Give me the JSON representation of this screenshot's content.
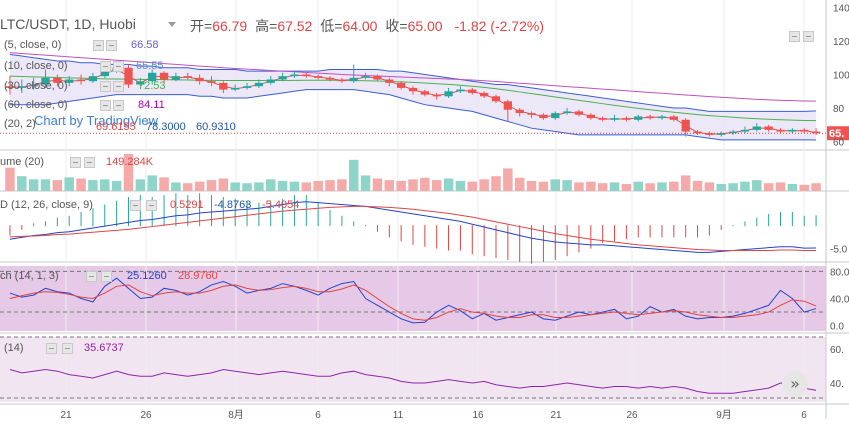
{
  "header": {
    "symbol": "LTC/USDT, 1D, Huobi",
    "open_label": "开=",
    "open": "66.79",
    "high_label": "高=",
    "high": "67.52",
    "low_label": "低=",
    "low": "64.00",
    "close_label": "收=",
    "close": "65.00",
    "change": "-1.82 (-2.72%)"
  },
  "legends": {
    "ma5": {
      "label": "(5, close, 0)",
      "value": "66.58",
      "color": "#6a5acd"
    },
    "ma10": {
      "label": "(10, close, 0)",
      "value": "65.55",
      "color": "#5b8cc8"
    },
    "ma30": {
      "label": "(30, close, 0)",
      "value": "72.53",
      "color": "#4caf50"
    },
    "ma60": {
      "label": "(60, close, 0)",
      "value": "84.11",
      "color": "#b000b0"
    },
    "bb": {
      "label": "(20, 2)",
      "v1": "69.6155",
      "v2": "78.3000",
      "v3": "60.9310"
    },
    "watermark": "Chart by TradingView",
    "volume": {
      "label": "ume (20)",
      "value": "149.284K"
    },
    "macd": {
      "label": "D (12, 26, close, 9)",
      "v1": "0.5291",
      "v2": "-4.8763",
      "v3": "-5.4054"
    },
    "stoch": {
      "label": "ch (14, 1, 3)",
      "v1": "25.1260",
      "v2": "28.9760"
    },
    "rsi": {
      "label": "(14)",
      "value": "35.6737"
    }
  },
  "price_axis": [
    "140",
    "120",
    "100",
    "80",
    "60"
  ],
  "price_tag": "65.",
  "macd_axis": [
    "-5.0"
  ],
  "stoch_axis": [
    "80.0",
    "40.0",
    "0.0"
  ],
  "rsi_axis": [
    "60.",
    "40."
  ],
  "x_labels": [
    "21",
    "26",
    "8月",
    "6",
    "11",
    "16",
    "21",
    "26",
    "9月",
    "6"
  ],
  "colors": {
    "up": "#26a69a",
    "down": "#ef5350",
    "bb_fill": "#e9e4f7"
  },
  "chart_data": {
    "type": "candlestick",
    "candles": [
      [
        93,
        92,
        99,
        88
      ],
      [
        92,
        93,
        97,
        89
      ],
      [
        93,
        94,
        98,
        91
      ],
      [
        94,
        98,
        103,
        92
      ],
      [
        98,
        95,
        100,
        93
      ],
      [
        95,
        97,
        99,
        93
      ],
      [
        97,
        96,
        100,
        94
      ],
      [
        96,
        99,
        101,
        95
      ],
      [
        99,
        102,
        104,
        98
      ],
      [
        102,
        104,
        106,
        101
      ],
      [
        104,
        94,
        106,
        92
      ],
      [
        94,
        96,
        98,
        93
      ],
      [
        96,
        101,
        103,
        94
      ],
      [
        101,
        97,
        102,
        95
      ],
      [
        97,
        99,
        101,
        96
      ],
      [
        99,
        98,
        101,
        97
      ],
      [
        98,
        96,
        100,
        94
      ],
      [
        96,
        95,
        99,
        93
      ],
      [
        95,
        91,
        96,
        89
      ],
      [
        91,
        92,
        94,
        90
      ],
      [
        92,
        93,
        95,
        91
      ],
      [
        93,
        95,
        97,
        92
      ],
      [
        95,
        97,
        99,
        94
      ],
      [
        97,
        99,
        101,
        96
      ],
      [
        99,
        100,
        102,
        98
      ],
      [
        100,
        99,
        101,
        98
      ],
      [
        99,
        98,
        100,
        97
      ],
      [
        98,
        97,
        99,
        96
      ],
      [
        97,
        96,
        98,
        95
      ],
      [
        96,
        98,
        106,
        95
      ],
      [
        98,
        99,
        101,
        97
      ],
      [
        99,
        97,
        100,
        96
      ],
      [
        97,
        95,
        98,
        93
      ],
      [
        95,
        92,
        96,
        91
      ],
      [
        92,
        90,
        93,
        88
      ],
      [
        90,
        88,
        91,
        87
      ],
      [
        88,
        87,
        89,
        85
      ],
      [
        87,
        90,
        92,
        86
      ],
      [
        90,
        91,
        93,
        89
      ],
      [
        91,
        89,
        92,
        88
      ],
      [
        89,
        87,
        90,
        86
      ],
      [
        87,
        84,
        88,
        83
      ],
      [
        84,
        79,
        85,
        72
      ],
      [
        79,
        77,
        80,
        75
      ],
      [
        77,
        76,
        78,
        74
      ],
      [
        76,
        74,
        77,
        73
      ],
      [
        74,
        77,
        78,
        73
      ],
      [
        77,
        78,
        80,
        76
      ],
      [
        78,
        76,
        79,
        75
      ],
      [
        76,
        74,
        77,
        73
      ],
      [
        74,
        73,
        75,
        72
      ],
      [
        73,
        74,
        76,
        72
      ],
      [
        74,
        73,
        75,
        72
      ],
      [
        73,
        75,
        76,
        72
      ],
      [
        75,
        74,
        76,
        73
      ],
      [
        74,
        75,
        76,
        73
      ],
      [
        75,
        73,
        76,
        72
      ],
      [
        73,
        66,
        74,
        63
      ],
      [
        66,
        65,
        67,
        64
      ],
      [
        65,
        64,
        66,
        63
      ],
      [
        64,
        65,
        66,
        63
      ],
      [
        65,
        66,
        67,
        64
      ],
      [
        66,
        67,
        69,
        65
      ],
      [
        67,
        69,
        71,
        66
      ],
      [
        69,
        67,
        70,
        66
      ],
      [
        67,
        66,
        68,
        65
      ],
      [
        66,
        67,
        68,
        65
      ],
      [
        67,
        66,
        68,
        65
      ],
      [
        66,
        65,
        68,
        64
      ]
    ],
    "volume": [
      60,
      38,
      30,
      30,
      28,
      35,
      32,
      28,
      30,
      26,
      95,
      30,
      40,
      35,
      22,
      20,
      24,
      28,
      32,
      22,
      20,
      22,
      30,
      26,
      24,
      22,
      26,
      28,
      30,
      80,
      40,
      32,
      28,
      26,
      30,
      34,
      28,
      32,
      26,
      24,
      30,
      38,
      58,
      34,
      26,
      24,
      30,
      28,
      22,
      24,
      20,
      22,
      18,
      24,
      20,
      22,
      24,
      40,
      26,
      22,
      18,
      20,
      24,
      28,
      20,
      22,
      18,
      16,
      20
    ],
    "ma60": [
      113,
      112.5,
      112,
      111.5,
      111,
      110.5,
      110,
      109.5,
      109,
      108.5,
      108,
      107.5,
      107,
      106.5,
      106,
      105.5,
      105,
      104.5,
      104,
      103.6,
      103.2,
      102.8,
      102.4,
      102,
      101.6,
      101.2,
      100.8,
      100.4,
      100,
      99.7,
      99.4,
      99.1,
      98.8,
      98.5,
      98.2,
      97.9,
      97.6,
      97.3,
      97,
      96.7,
      96.3,
      95.8,
      95.3,
      94.8,
      94.3,
      93.8,
      93.3,
      92.8,
      92.3,
      91.8,
      91.3,
      90.8,
      90.3,
      89.8,
      89.3,
      88.8,
      88.3,
      87.8,
      87.3,
      86.8,
      86.4,
      86,
      85.6,
      85.2,
      84.9,
      84.6,
      84.4,
      84.2,
      84.11
    ],
    "ma30": [
      99,
      98.8,
      98.6,
      98.4,
      98.2,
      98,
      97.8,
      97.6,
      97.4,
      97.3,
      97.2,
      97.1,
      97,
      96.9,
      96.8,
      96.7,
      96.6,
      96.5,
      96.4,
      96.4,
      96.4,
      96.4,
      96.4,
      96.4,
      96.5,
      96.6,
      96.6,
      96.6,
      96.5,
      96.4,
      96.3,
      96.1,
      95.9,
      95.6,
      95.3,
      94.9,
      94.5,
      94.1,
      93.6,
      93,
      92.3,
      91.5,
      90.6,
      89.6,
      88.6,
      87.6,
      86.6,
      85.6,
      84.6,
      83.6,
      82.6,
      81.6,
      80.7,
      79.8,
      79,
      78.2,
      77.5,
      76.8,
      76.1,
      75.5,
      75,
      74.5,
      74,
      73.6,
      73.3,
      73,
      72.8,
      72.6,
      72.53
    ],
    "bb_upper": [
      112,
      111,
      110,
      109,
      108,
      108,
      107,
      107,
      106,
      106,
      106,
      105,
      105,
      104,
      104,
      104,
      103,
      103,
      103,
      103,
      102,
      102,
      102,
      102,
      102,
      102,
      102,
      103,
      103,
      103,
      103,
      103,
      102,
      102,
      101,
      100,
      99,
      98,
      97,
      96,
      95,
      94,
      94,
      93,
      92,
      91,
      90,
      89,
      88,
      87,
      86,
      85,
      84,
      83,
      82,
      81,
      80,
      80,
      79,
      78,
      78,
      78,
      78,
      78,
      78,
      78,
      78,
      78,
      78.3
    ],
    "bb_lower": [
      82,
      82,
      82,
      82,
      83,
      84,
      85,
      86,
      87,
      88,
      88,
      88,
      88,
      88,
      88,
      88,
      87,
      87,
      86,
      86,
      86,
      87,
      88,
      89,
      90,
      91,
      91,
      91,
      91,
      91,
      90,
      89,
      88,
      86,
      84,
      82,
      81,
      80,
      79,
      78,
      76,
      74,
      72,
      70,
      68,
      67,
      66,
      65,
      64,
      64,
      64,
      64,
      64,
      64,
      64,
      64,
      64,
      64,
      63,
      62,
      61,
      61,
      61,
      61,
      61,
      61,
      61,
      61,
      60.931
    ],
    "stoch_k": [
      48,
      42,
      45,
      55,
      50,
      48,
      40,
      35,
      58,
      70,
      55,
      40,
      42,
      55,
      52,
      45,
      50,
      60,
      65,
      58,
      48,
      52,
      55,
      62,
      58,
      52,
      45,
      55,
      62,
      65,
      40,
      30,
      20,
      10,
      4,
      5,
      20,
      30,
      22,
      10,
      18,
      8,
      12,
      16,
      20,
      10,
      8,
      14,
      20,
      16,
      20,
      24,
      10,
      14,
      28,
      20,
      24,
      14,
      10,
      12,
      12,
      14,
      18,
      24,
      30,
      52,
      40,
      20,
      25.126
    ],
    "stoch_d": [
      40,
      44,
      48,
      50,
      49,
      46,
      42,
      40,
      48,
      58,
      60,
      50,
      44,
      48,
      50,
      48,
      48,
      52,
      58,
      60,
      55,
      52,
      53,
      56,
      58,
      55,
      50,
      50,
      54,
      60,
      52,
      40,
      28,
      18,
      10,
      8,
      12,
      20,
      25,
      20,
      18,
      14,
      12,
      12,
      16,
      16,
      12,
      12,
      14,
      16,
      18,
      20,
      18,
      16,
      18,
      20,
      22,
      20,
      16,
      14,
      12,
      12,
      14,
      16,
      20,
      30,
      38,
      36,
      28.976
    ],
    "macd": [
      -3,
      -2.6,
      -2.2,
      -2,
      -1.6,
      -1.4,
      -1,
      -0.6,
      -0.2,
      0.2,
      0.6,
      1,
      1.2,
      1.6,
      2,
      2.2,
      2.6,
      2.8,
      3,
      3.2,
      3.4,
      3.6,
      4,
      4.4,
      4.8,
      5,
      4.8,
      4.6,
      4.4,
      4.2,
      4,
      3.6,
      3.2,
      2.8,
      2.4,
      2,
      1.6,
      1.2,
      0.8,
      0.2,
      -0.4,
      -1,
      -1.6,
      -2.2,
      -2.8,
      -3.2,
      -3.6,
      -3.8,
      -4,
      -4.2,
      -4.2,
      -4.4,
      -4.6,
      -4.8,
      -5,
      -5.2,
      -5.4,
      -5.6,
      -5.8,
      -5.8,
      -5.6,
      -5.4,
      -5.2,
      -5,
      -4.8,
      -4.6,
      -4.6,
      -4.9,
      -4.8763
    ],
    "macd_signal": [
      -2.5,
      -2.4,
      -2.3,
      -2.2,
      -2,
      -1.9,
      -1.7,
      -1.5,
      -1.3,
      -1.1,
      -0.9,
      -0.6,
      -0.3,
      0,
      0.3,
      0.6,
      0.9,
      1.2,
      1.5,
      1.8,
      2.1,
      2.4,
      2.7,
      3,
      3.2,
      3.4,
      3.6,
      3.8,
      3.9,
      4,
      4,
      3.9,
      3.8,
      3.6,
      3.4,
      3.1,
      2.8,
      2.5,
      2.1,
      1.7,
      1.2,
      0.7,
      0.2,
      -0.3,
      -0.8,
      -1.3,
      -1.8,
      -2.2,
      -2.6,
      -3,
      -3.3,
      -3.6,
      -3.9,
      -4.2,
      -4.4,
      -4.6,
      -4.8,
      -5,
      -5.2,
      -5.3,
      -5.4,
      -5.4,
      -5.4,
      -5.4,
      -5.4,
      -5.3,
      -5.3,
      -5.4,
      -5.4054
    ],
    "rsi": [
      48,
      46,
      47,
      48,
      47,
      45,
      44,
      43,
      45,
      47,
      45,
      44,
      44,
      46,
      45,
      44,
      45,
      46,
      48,
      47,
      46,
      45,
      46,
      47,
      46,
      45,
      44,
      44,
      46,
      47,
      45,
      44,
      43,
      41,
      40,
      40,
      41,
      42,
      41,
      40,
      41,
      39,
      38,
      37,
      38,
      38,
      39,
      40,
      39,
      38,
      37,
      38,
      38,
      37,
      38,
      37,
      38,
      37,
      35,
      34,
      34,
      34,
      35,
      36,
      37,
      40,
      39,
      37,
      35.6737
    ]
  }
}
